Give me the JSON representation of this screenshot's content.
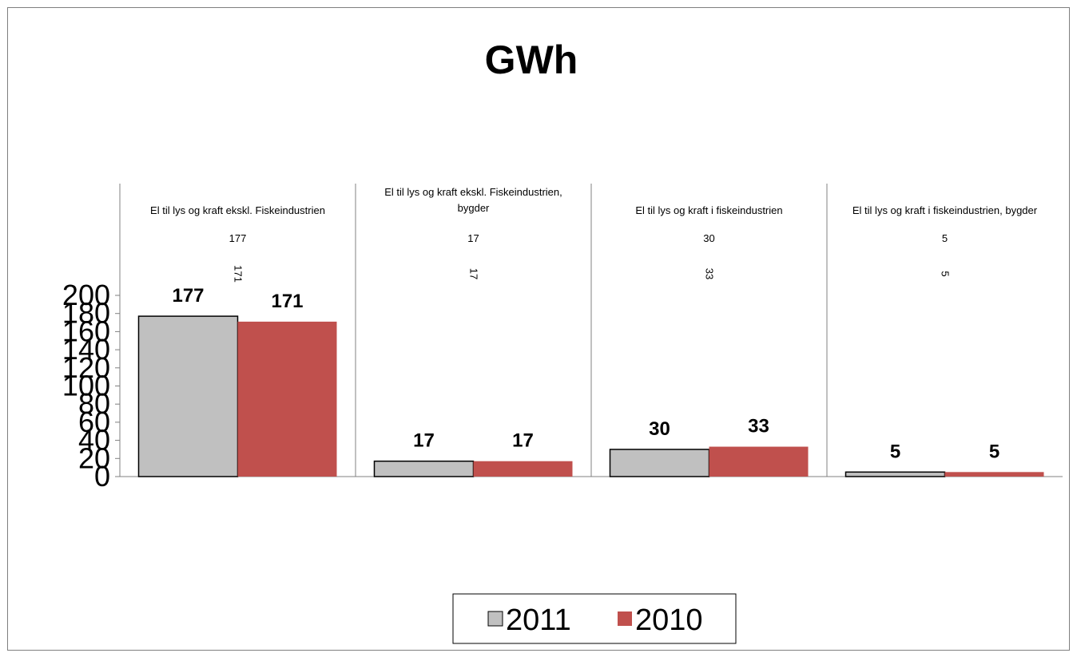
{
  "chart_data": {
    "type": "bar",
    "title": "GWh",
    "categories": [
      [
        "El til lys og kraft ekskl. Fiskeindustrien"
      ],
      [
        "El til lys og kraft ekskl. Fiskeindustrien,",
        "bygder"
      ],
      [
        "El til lys og kraft i fiskeindustrien"
      ],
      [
        "El til lys og kraft i fiskeindustrien, bygder"
      ]
    ],
    "series": [
      {
        "name": "2011",
        "values": [
          177,
          17,
          30,
          5
        ],
        "color": "#c0c0c0"
      },
      {
        "name": "2010",
        "values": [
          171,
          17,
          33,
          5
        ],
        "color": "#c0504d"
      }
    ],
    "ylim": [
      0,
      200
    ],
    "yticks": [
      0,
      20,
      40,
      60,
      80,
      100,
      120,
      140,
      160,
      180,
      200
    ],
    "xlabel": "",
    "ylabel": "",
    "legend_position": "bottom"
  }
}
